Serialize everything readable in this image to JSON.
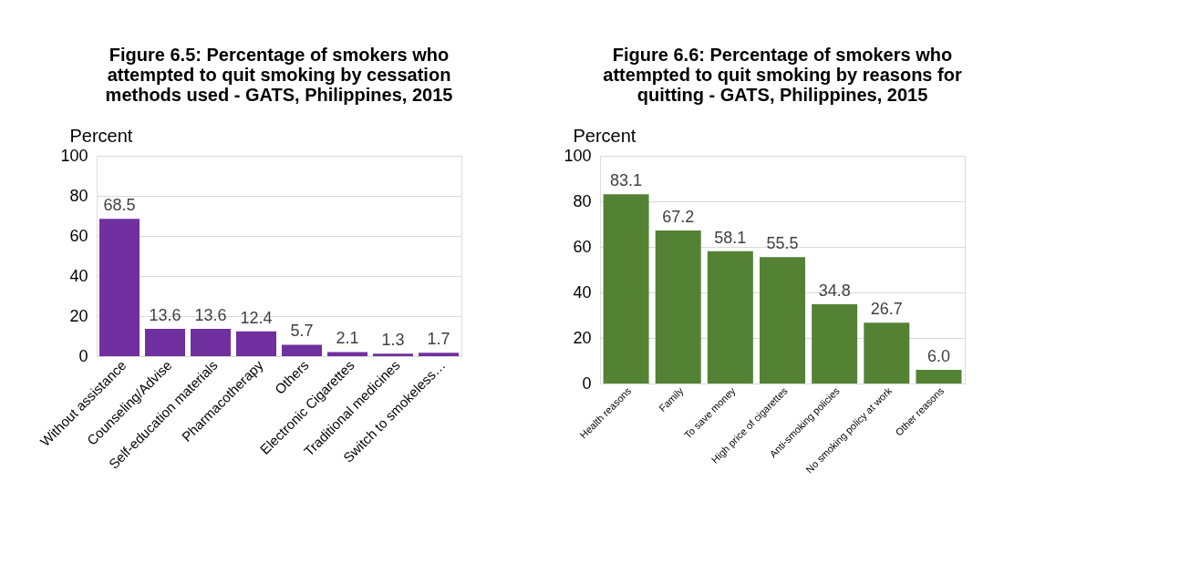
{
  "chart_data": [
    {
      "type": "bar",
      "title": "Figure 6.5:  Percentage of smokers who attempted to quit smoking by cessation methods used -  GATS, Philippines, 2015",
      "ylabel": "Percent",
      "categories": [
        "Without assistance",
        "Counseling/Advise",
        "Self-education materials",
        "Pharmacotherapy",
        "Others",
        "Electronic Cigarettes",
        "Traditional medicines",
        "Switch to smokeless…"
      ],
      "values": [
        68.5,
        13.6,
        13.6,
        12.4,
        5.7,
        2.1,
        1.3,
        1.7
      ],
      "color": "#7030a0",
      "value_labels": [
        "68.5",
        "13.6",
        "13.6",
        "12.4",
        "5.7",
        "2.1",
        "1.3",
        "1.7"
      ],
      "ylim": [
        0,
        100
      ],
      "yticks": [
        0,
        20,
        40,
        60,
        80,
        100
      ],
      "grid": "y"
    },
    {
      "type": "bar",
      "title": "Figure 6.6:  Percentage of smokers who attempted to quit smoking by reasons for quitting -  GATS, Philippines, 2015",
      "ylabel": "Percent",
      "categories": [
        "Health reasons",
        "Family",
        "To save money",
        "High price of cigarettes",
        "Anti-smoking policies",
        "No smoking policy at work",
        "Other reasons"
      ],
      "values": [
        83.1,
        67.2,
        58.1,
        55.5,
        34.8,
        26.7,
        6.0
      ],
      "color": "#548235",
      "value_labels": [
        "83.1",
        "67.2",
        "58.1",
        "55.5",
        "34.8",
        "26.7",
        "6.0"
      ],
      "ylim": [
        0,
        100
      ],
      "yticks": [
        0,
        20,
        40,
        60,
        80,
        100
      ],
      "grid": "y"
    }
  ]
}
